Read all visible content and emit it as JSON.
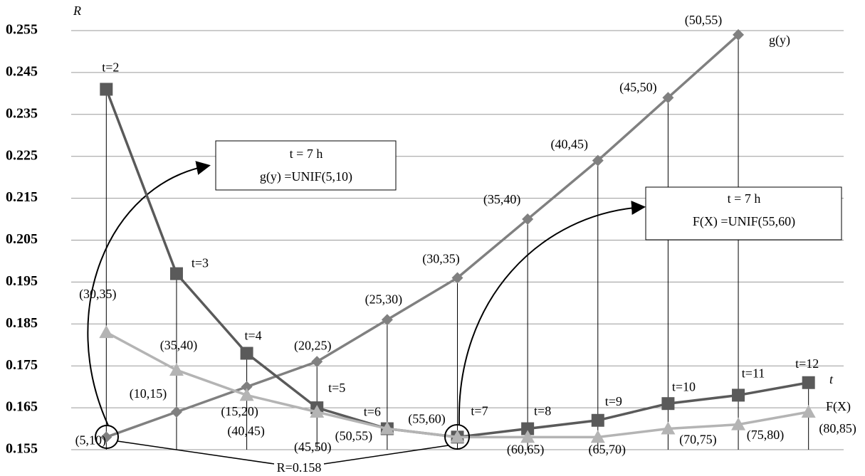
{
  "chart_data": {
    "type": "line",
    "y_label": "R",
    "categories": [
      null,
      null,
      null,
      null,
      null,
      null,
      null,
      null,
      null,
      null,
      null
    ],
    "ylim": [
      0.155,
      0.255
    ],
    "yticks": [
      0.155,
      0.165,
      0.175,
      0.185,
      0.195,
      0.205,
      0.215,
      0.225,
      0.235,
      0.245,
      0.255
    ],
    "grid": true,
    "series": [
      {
        "name": "g(y)",
        "color": "#808080",
        "marker": "diamond",
        "values": [
          0.158,
          0.164,
          0.17,
          0.176,
          0.186,
          0.196,
          0.21,
          0.224,
          0.239,
          0.254,
          null
        ],
        "point_labels": [
          "(5,10)",
          "(10,15)",
          "(15,20)",
          "(20,25)",
          "(25,30)",
          "(30,35)",
          "(35,40)",
          "(40,45)",
          "(45,50)",
          "(50,55)",
          null
        ]
      },
      {
        "name": "t",
        "color": "#5a5a5a",
        "marker": "square",
        "values": [
          0.241,
          0.197,
          0.178,
          0.165,
          0.16,
          0.158,
          0.16,
          0.162,
          0.166,
          0.168,
          0.171
        ],
        "point_labels": [
          "t=2",
          "t=3",
          "t=4",
          "t=5",
          "t=6",
          "t=7",
          "t=8",
          "t=9",
          "t=10",
          "t=11",
          "t=12"
        ]
      },
      {
        "name": "F(X)",
        "color": "#b4b4b4",
        "marker": "triangle",
        "values": [
          0.183,
          0.174,
          0.168,
          0.164,
          0.16,
          0.158,
          0.158,
          0.158,
          0.16,
          0.161,
          0.164
        ],
        "point_labels": [
          "(30,35)",
          "(35,40)",
          "(40,45)",
          "(45,50)",
          "(50,55)",
          "(55,60)",
          "(60,65)",
          "(65,70)",
          "(70,75)",
          "(75,80)",
          "(80,85)"
        ]
      }
    ],
    "annotations": [
      {
        "lines": [
          "t = 7 h",
          "g(y) =UNIF(5,10)"
        ]
      },
      {
        "lines": [
          "t = 7 h",
          "F(X) =UNIF(55,60)"
        ]
      },
      {
        "text": "R=0.158"
      }
    ]
  }
}
